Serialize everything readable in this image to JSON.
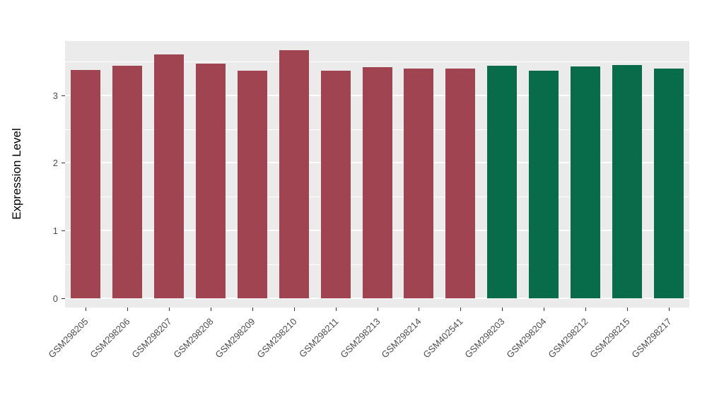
{
  "chart_data": {
    "type": "bar",
    "title": "",
    "xlabel": "",
    "ylabel": "Expression Level",
    "ylim": [
      0,
      3.8
    ],
    "yticks": [
      0,
      1,
      2,
      3
    ],
    "minor_gridlines": [
      0.5,
      1.5,
      2.5,
      3.5
    ],
    "grid": true,
    "legend_position": "none",
    "panel_background": "#EBEBEB",
    "gridline_color": "#ffffff",
    "categories": [
      "GSM298205",
      "GSM298206",
      "GSM298207",
      "GSM298208",
      "GSM298209",
      "GSM298210",
      "GSM298211",
      "GSM298213",
      "GSM298214",
      "GSM402541",
      "GSM298203",
      "GSM298204",
      "GSM298212",
      "GSM298215",
      "GSM298217"
    ],
    "values": [
      3.37,
      3.43,
      3.6,
      3.47,
      3.36,
      3.66,
      3.36,
      3.41,
      3.39,
      3.39,
      3.43,
      3.36,
      3.42,
      3.45,
      3.39
    ],
    "bar_groups": [
      "A",
      "A",
      "A",
      "A",
      "A",
      "A",
      "A",
      "A",
      "A",
      "A",
      "B",
      "B",
      "B",
      "B",
      "B"
    ],
    "group_colors": {
      "A": "#A04452",
      "B": "#086B4A"
    }
  }
}
